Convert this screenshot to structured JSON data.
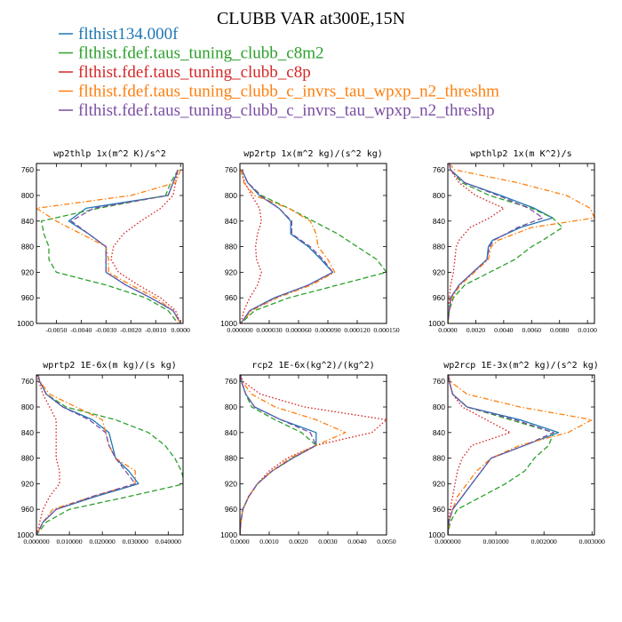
{
  "figure": {
    "title": "CLUBB VAR at300E,15N"
  },
  "legend": [
    {
      "name": "flthist134.000f",
      "color": "#1f77b4",
      "dash": "solid"
    },
    {
      "name": "flthist.fdef.taus_tuning_clubb_c8m2",
      "color": "#2ca02c",
      "dash": "dash"
    },
    {
      "name": "flthist.fdef.taus_tuning_clubb_c8p",
      "color": "#d62728",
      "dash": "dot"
    },
    {
      "name": "flthist.fdef.taus_tuning_clubb_c_invrs_tau_wpxp_n2_threshm",
      "color": "#ff7f0e",
      "dash": "dashdot"
    },
    {
      "name": "flthist.fdef.taus_tuning_clubb_c_invrs_tau_wpxp_n2_threshp",
      "color": "#7b4ea3",
      "dash": "dash"
    }
  ],
  "chart_data": [
    {
      "type": "line",
      "title": "wp2thlp  1x(m^2 K)/s^2",
      "xlim": [
        -0.0058,
        0.0001
      ],
      "ylim": [
        1000,
        750
      ],
      "xticks": [
        -0.005,
        -0.004,
        -0.003,
        -0.002,
        -0.001,
        0.0
      ],
      "xticklabels": [
        "-0.0050",
        "-0.0040",
        "-0.0030",
        "-0.0020",
        "-0.0010",
        "0.0000"
      ],
      "yticks": [
        760,
        800,
        840,
        880,
        920,
        960,
        1000
      ],
      "y": [
        760,
        780,
        800,
        820,
        840,
        860,
        880,
        900,
        920,
        940,
        960,
        980,
        1000
      ],
      "series": [
        {
          "values": [
            -0.0001,
            -0.0003,
            -0.0005,
            -0.0038,
            -0.0045,
            -0.0037,
            -0.003,
            -0.003,
            -0.003,
            -0.0022,
            -0.0012,
            -0.0003,
            0.0
          ]
        },
        {
          "values": [
            -0.0001,
            -0.0004,
            -0.0006,
            -0.0033,
            -0.0056,
            -0.0055,
            -0.0053,
            -0.0053,
            -0.005,
            -0.003,
            -0.0014,
            -0.0005,
            -0.0001
          ]
        },
        {
          "values": [
            -0.0001,
            -0.0002,
            -0.0003,
            -0.0008,
            -0.0016,
            -0.0023,
            -0.0027,
            -0.0028,
            -0.0025,
            -0.0017,
            -0.0008,
            -0.0002,
            0.0
          ]
        },
        {
          "values": [
            0.0,
            -0.0002,
            -0.002,
            -0.0058,
            -0.005,
            -0.004,
            -0.003,
            -0.0029,
            -0.0029,
            -0.002,
            -0.001,
            -0.0003,
            0.0
          ]
        },
        {
          "values": [
            -0.0001,
            -0.0003,
            -0.0005,
            -0.0035,
            -0.0044,
            -0.0037,
            -0.003,
            -0.003,
            -0.003,
            -0.0022,
            -0.0012,
            -0.0003,
            0.0
          ]
        }
      ]
    },
    {
      "type": "line",
      "title": "wp2rtp  1x(m^2 kg)/(s^2 kg)",
      "xlim": [
        0,
        0.00015
      ],
      "ylim": [
        1000,
        750
      ],
      "xticks": [
        0,
        3e-05,
        6e-05,
        9e-05,
        0.00012,
        0.00015
      ],
      "xticklabels": [
        "0.000000",
        "0.000030",
        "0.000060",
        "0.000090",
        "0.000120",
        "0.000150"
      ],
      "yticks": [
        760,
        800,
        840,
        880,
        920,
        960,
        1000
      ],
      "y": [
        760,
        780,
        800,
        820,
        840,
        860,
        880,
        900,
        920,
        940,
        960,
        980,
        1000
      ],
      "series": [
        {
          "values": [
            2e-06,
            8e-06,
            2e-05,
            4e-05,
            5.2e-05,
            5.2e-05,
            7e-05,
            8.3e-05,
            9.5e-05,
            7e-05,
            3.5e-05,
            1e-05,
            1e-06
          ]
        },
        {
          "values": [
            2e-06,
            8e-06,
            2.2e-05,
            5e-05,
            7.5e-05,
            0.0001,
            0.00012,
            0.00014,
            0.00015,
            0.0001,
            5e-05,
            1.5e-05,
            1e-06
          ]
        },
        {
          "values": [
            1e-06,
            5e-06,
            1.2e-05,
            2e-05,
            2.2e-05,
            1.8e-05,
            1.6e-05,
            1.7e-05,
            2.2e-05,
            1.8e-05,
            1e-05,
            4e-06,
            1e-06
          ]
        },
        {
          "values": [
            1e-06,
            4e-06,
            1.5e-05,
            5e-05,
            7.2e-05,
            7.8e-05,
            8e-05,
            9e-05,
            9.7e-05,
            7.3e-05,
            3.8e-05,
            1.2e-05,
            1e-06
          ]
        },
        {
          "values": [
            2e-06,
            8e-06,
            2.1e-05,
            4e-05,
            5.3e-05,
            5.3e-05,
            7.2e-05,
            8.5e-05,
            9.5e-05,
            7e-05,
            3.6e-05,
            1e-05,
            1e-06
          ]
        }
      ]
    },
    {
      "type": "line",
      "title": "wpthlp2  1x(m K^2)/s",
      "xlim": [
        0,
        0.0105
      ],
      "ylim": [
        1000,
        750
      ],
      "xticks": [
        0,
        0.002,
        0.004,
        0.006,
        0.008,
        0.01
      ],
      "xticklabels": [
        "0.0000",
        "0.0020",
        "0.0040",
        "0.0060",
        "0.0080",
        "0.0100"
      ],
      "yticks": [
        760,
        800,
        840,
        880,
        920,
        960,
        1000
      ],
      "y": [
        750,
        760,
        780,
        800,
        820,
        835,
        850,
        870,
        880,
        900,
        920,
        940,
        960,
        980,
        1000
      ],
      "series": [
        {
          "values": [
            0.0001,
            0.0002,
            0.0012,
            0.0038,
            0.0062,
            0.0075,
            0.0052,
            0.0032,
            0.0029,
            0.0028,
            0.0018,
            0.0008,
            0.0002,
            0.0001,
            0.0
          ]
        },
        {
          "values": [
            0.0001,
            0.0002,
            0.001,
            0.003,
            0.006,
            0.0075,
            0.0082,
            0.0068,
            0.006,
            0.0048,
            0.003,
            0.0012,
            0.0004,
            0.0001,
            0.0
          ]
        },
        {
          "values": [
            0.0001,
            0.0002,
            0.0008,
            0.002,
            0.004,
            0.003,
            0.0016,
            0.0008,
            0.0006,
            0.0005,
            0.0004,
            0.0002,
            0.0001,
            0.0,
            0.0
          ]
        },
        {
          "values": [
            0.0001,
            0.0005,
            0.005,
            0.0085,
            0.0102,
            0.0105,
            0.006,
            0.0036,
            0.0031,
            0.0029,
            0.0019,
            0.0009,
            0.0003,
            0.0001,
            0.0
          ]
        },
        {
          "values": [
            0.0001,
            0.0002,
            0.0012,
            0.0036,
            0.0058,
            0.0068,
            0.005,
            0.0033,
            0.003,
            0.0028,
            0.0018,
            0.0008,
            0.0002,
            0.0001,
            0.0
          ]
        }
      ]
    },
    {
      "type": "line",
      "title": "wprtp2  1E-6x(m kg)/(s kg)",
      "xlim": [
        0,
        0.0445
      ],
      "ylim": [
        1000,
        750
      ],
      "xticks": [
        0,
        0.01,
        0.02,
        0.03,
        0.04
      ],
      "xticklabels": [
        "0.000000",
        "0.010000",
        "0.020000",
        "0.030000",
        "0.040000"
      ],
      "yticks": [
        760,
        800,
        840,
        880,
        920,
        960,
        1000
      ],
      "y": [
        750,
        760,
        780,
        800,
        820,
        840,
        860,
        880,
        900,
        920,
        940,
        960,
        980,
        1000
      ],
      "series": [
        {
          "values": [
            0.0005,
            0.001,
            0.003,
            0.008,
            0.017,
            0.022,
            0.023,
            0.024,
            0.028,
            0.031,
            0.018,
            0.006,
            0.002,
            0.0
          ]
        },
        {
          "values": [
            0.0005,
            0.001,
            0.003,
            0.009,
            0.024,
            0.034,
            0.039,
            0.042,
            0.044,
            0.045,
            0.028,
            0.01,
            0.003,
            0.0
          ]
        },
        {
          "values": [
            0.0002,
            0.0007,
            0.002,
            0.004,
            0.006,
            0.006,
            0.006,
            0.006,
            0.007,
            0.007,
            0.004,
            0.002,
            0.001,
            0.0
          ]
        },
        {
          "values": [
            0.0004,
            0.001,
            0.004,
            0.012,
            0.02,
            0.021,
            0.022,
            0.024,
            0.03,
            0.03,
            0.017,
            0.005,
            0.002,
            0.0
          ]
        },
        {
          "values": [
            0.0005,
            0.001,
            0.003,
            0.008,
            0.016,
            0.021,
            0.022,
            0.024,
            0.027,
            0.03,
            0.017,
            0.006,
            0.002,
            0.0
          ]
        }
      ]
    },
    {
      "type": "line",
      "title": "rcp2  1E-6x(kg^2)/(kg^2)",
      "xlim": [
        0,
        0.005
      ],
      "ylim": [
        1000,
        750
      ],
      "xticks": [
        0,
        0.001,
        0.002,
        0.003,
        0.004,
        0.005
      ],
      "xticklabels": [
        "0.0000",
        "0.0010",
        "0.0020",
        "0.0030",
        "0.0040",
        "0.0050"
      ],
      "yticks": [
        760,
        800,
        840,
        880,
        920,
        960,
        1000
      ],
      "y": [
        750,
        760,
        780,
        800,
        820,
        840,
        860,
        880,
        900,
        920,
        940,
        960,
        980,
        1000
      ],
      "series": [
        {
          "values": [
            2e-05,
            5e-05,
            0.0002,
            0.0005,
            0.0014,
            0.0026,
            0.0026,
            0.0018,
            0.0011,
            0.0006,
            0.0003,
            0.0001,
            3e-05,
            0.0
          ]
        },
        {
          "values": [
            2e-05,
            5e-05,
            0.0002,
            0.0004,
            0.0012,
            0.0021,
            0.0026,
            0.0018,
            0.0011,
            0.0006,
            0.0003,
            0.0001,
            3e-05,
            0.0
          ]
        },
        {
          "values": [
            3e-05,
            0.0001,
            0.0007,
            0.0022,
            0.005,
            0.0045,
            0.0026,
            0.0016,
            0.001,
            0.0006,
            0.0003,
            0.0001,
            3e-05,
            0.0
          ]
        },
        {
          "values": [
            2e-05,
            7e-05,
            0.0004,
            0.0012,
            0.0026,
            0.0036,
            0.0026,
            0.0017,
            0.0011,
            0.0006,
            0.0003,
            0.0001,
            3e-05,
            0.0
          ]
        },
        {
          "values": [
            2e-05,
            5e-05,
            0.0002,
            0.0005,
            0.0014,
            0.0024,
            0.0026,
            0.0018,
            0.0011,
            0.0006,
            0.0003,
            0.0001,
            3e-05,
            0.0
          ]
        }
      ]
    },
    {
      "type": "line",
      "title": "wp2rcp  1E-3x(m^2 kg)/(s^2 kg)",
      "xlim": [
        0,
        0.00305
      ],
      "ylim": [
        1000,
        750
      ],
      "xticks": [
        0,
        0.001,
        0.002,
        0.003
      ],
      "xticklabels": [
        "0.000000",
        "0.001000",
        "0.002000",
        "0.003000"
      ],
      "yticks": [
        760,
        800,
        840,
        880,
        920,
        960,
        1000
      ],
      "y": [
        750,
        760,
        780,
        800,
        820,
        840,
        860,
        880,
        900,
        920,
        940,
        960,
        980,
        1000
      ],
      "series": [
        {
          "values": [
            1e-05,
            3e-05,
            0.0001,
            0.0004,
            0.0015,
            0.0023,
            0.0016,
            0.0009,
            0.0007,
            0.0005,
            0.0003,
            0.0001,
            2e-05,
            0.0
          ]
        },
        {
          "values": [
            1e-05,
            3e-05,
            0.0001,
            0.0004,
            0.0013,
            0.0022,
            0.0021,
            0.0018,
            0.0016,
            0.0012,
            0.0007,
            0.0002,
            5e-05,
            0.0
          ]
        },
        {
          "values": [
            1e-05,
            3e-05,
            0.0001,
            0.0003,
            0.0008,
            0.0013,
            0.0005,
            0.0003,
            0.0002,
            0.00015,
            0.0001,
            5e-05,
            1e-05,
            0.0
          ]
        },
        {
          "values": [
            1e-05,
            5e-05,
            0.0004,
            0.0015,
            0.003,
            0.0025,
            0.0015,
            0.0009,
            0.0006,
            0.0004,
            0.0002,
            0.0001,
            2e-05,
            0.0
          ]
        },
        {
          "values": [
            1e-05,
            3e-05,
            0.0001,
            0.0004,
            0.0014,
            0.0022,
            0.0016,
            0.0009,
            0.0007,
            0.0005,
            0.0003,
            0.0001,
            2e-05,
            0.0
          ]
        }
      ]
    }
  ]
}
